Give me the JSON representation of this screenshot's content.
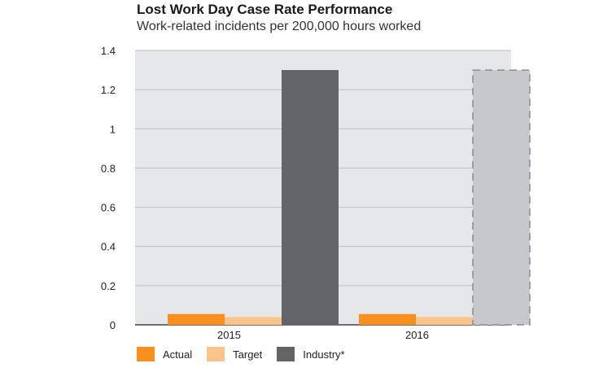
{
  "chart_data": {
    "type": "bar",
    "title": "Lost Work Day Case Rate Performance",
    "subtitle": "Work-related incidents per 200,000 hours worked",
    "xlabel": "",
    "ylabel": "",
    "categories": [
      "2015",
      "2016"
    ],
    "ylim": [
      0,
      1.4
    ],
    "yticks": [
      "0",
      "0.2",
      "0.4",
      "0.6",
      "0.8",
      "1",
      "1.2",
      "1.4"
    ],
    "grid": true,
    "legend_position": "bottom-left",
    "series": [
      {
        "name": "Actual",
        "values": [
          0.055,
          0.055
        ],
        "color": "#f7901e"
      },
      {
        "name": "Target",
        "values": [
          0.04,
          0.04
        ],
        "color": "#fcc48d"
      },
      {
        "name": "Industry*",
        "values": [
          1.3,
          1.3
        ],
        "color": "#636466",
        "estimated_color": "#c7c8ca",
        "estimated_categories": [
          "2016"
        ]
      }
    ],
    "plot_background": "#e6e7e8"
  }
}
